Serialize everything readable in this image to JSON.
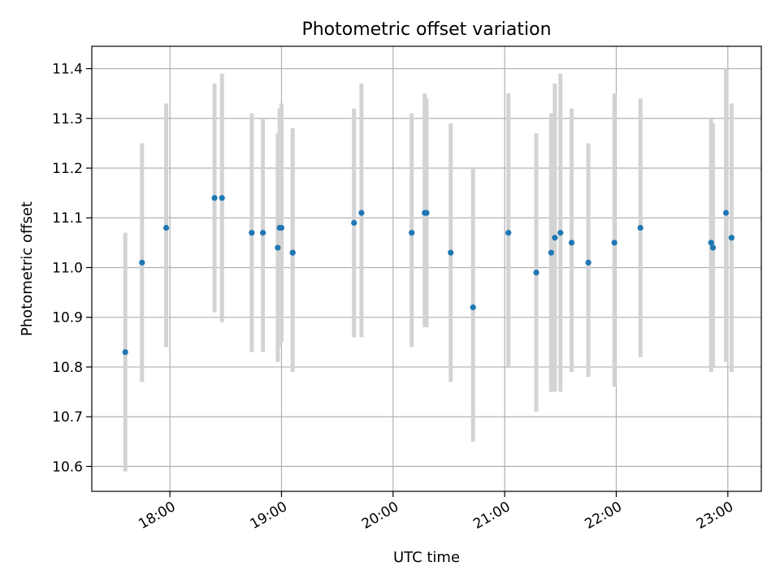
{
  "chart_data": {
    "type": "scatter",
    "title": "Photometric offset variation",
    "xlabel": "UTC time",
    "ylabel": "Photometric offset",
    "xlim": [
      "17:18",
      "23:18"
    ],
    "ylim": [
      10.55,
      11.445
    ],
    "grid": true,
    "x_ticks": [
      "18:00",
      "19:00",
      "20:00",
      "21:00",
      "22:00",
      "23:00"
    ],
    "y_ticks": [
      "10.6",
      "10.7",
      "10.8",
      "10.9",
      "11.0",
      "11.1",
      "11.2",
      "11.3",
      "11.4"
    ],
    "marker_color": "#1f77b4",
    "errorbar_color": "#d3d3d3",
    "points": [
      {
        "t": "17:36",
        "y": 10.83,
        "low": 10.59,
        "high": 11.07
      },
      {
        "t": "17:45",
        "y": 11.01,
        "low": 10.77,
        "high": 11.25
      },
      {
        "t": "17:58",
        "y": 11.08,
        "low": 10.84,
        "high": 11.33
      },
      {
        "t": "18:24",
        "y": 11.14,
        "low": 10.91,
        "high": 11.37
      },
      {
        "t": "18:28",
        "y": 11.14,
        "low": 10.89,
        "high": 11.39
      },
      {
        "t": "18:44",
        "y": 11.07,
        "low": 10.83,
        "high": 11.31
      },
      {
        "t": "18:50",
        "y": 11.07,
        "low": 10.83,
        "high": 11.3
      },
      {
        "t": "18:58",
        "y": 11.04,
        "low": 10.81,
        "high": 11.27
      },
      {
        "t": "18:59",
        "y": 11.08,
        "low": 10.84,
        "high": 11.32
      },
      {
        "t": "19:00",
        "y": 11.08,
        "low": 10.85,
        "high": 11.33
      },
      {
        "t": "19:06",
        "y": 11.03,
        "low": 10.79,
        "high": 11.28
      },
      {
        "t": "19:06",
        "y": 11.03,
        "low": 10.8,
        "high": 11.27
      },
      {
        "t": "19:39",
        "y": 11.09,
        "low": 10.86,
        "high": 11.32
      },
      {
        "t": "19:43",
        "y": 11.11,
        "low": 10.86,
        "high": 11.37
      },
      {
        "t": "20:10",
        "y": 11.07,
        "low": 10.84,
        "high": 11.31
      },
      {
        "t": "20:17",
        "y": 11.11,
        "low": 10.88,
        "high": 11.35
      },
      {
        "t": "20:18",
        "y": 11.11,
        "low": 10.88,
        "high": 11.34
      },
      {
        "t": "20:31",
        "y": 11.03,
        "low": 10.77,
        "high": 11.29
      },
      {
        "t": "20:43",
        "y": 10.92,
        "low": 10.65,
        "high": 11.2
      },
      {
        "t": "21:02",
        "y": 11.07,
        "low": 10.8,
        "high": 11.35
      },
      {
        "t": "21:17",
        "y": 10.99,
        "low": 10.71,
        "high": 11.27
      },
      {
        "t": "21:25",
        "y": 11.03,
        "low": 10.75,
        "high": 11.31
      },
      {
        "t": "21:27",
        "y": 11.06,
        "low": 10.75,
        "high": 11.37
      },
      {
        "t": "21:30",
        "y": 11.07,
        "low": 10.75,
        "high": 11.39
      },
      {
        "t": "21:36",
        "y": 11.05,
        "low": 10.79,
        "high": 11.32
      },
      {
        "t": "21:45",
        "y": 11.01,
        "low": 10.78,
        "high": 11.25
      },
      {
        "t": "21:59",
        "y": 11.05,
        "low": 10.76,
        "high": 11.35
      },
      {
        "t": "22:13",
        "y": 11.08,
        "low": 10.82,
        "high": 11.34
      },
      {
        "t": "22:51",
        "y": 11.05,
        "low": 10.79,
        "high": 11.3
      },
      {
        "t": "22:52",
        "y": 11.04,
        "low": 10.8,
        "high": 11.29
      },
      {
        "t": "22:59",
        "y": 11.11,
        "low": 10.81,
        "high": 11.4
      },
      {
        "t": "23:02",
        "y": 11.06,
        "low": 10.79,
        "high": 11.33
      }
    ]
  }
}
